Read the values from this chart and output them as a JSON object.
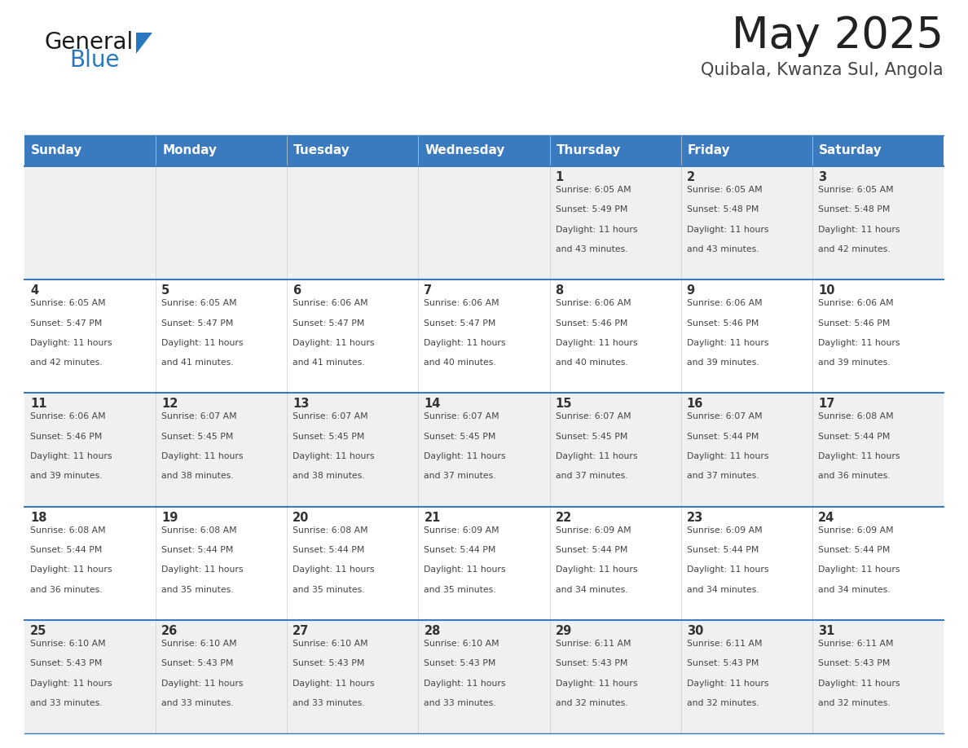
{
  "title": "May 2025",
  "subtitle": "Quibala, Kwanza Sul, Angola",
  "days_of_week": [
    "Sunday",
    "Monday",
    "Tuesday",
    "Wednesday",
    "Thursday",
    "Friday",
    "Saturday"
  ],
  "header_bg": "#3a7abf",
  "header_text": "#ffffff",
  "row_bg_odd": "#f0f0f0",
  "row_bg_even": "#ffffff",
  "cell_text": "#444444",
  "day_num_color": "#333333",
  "divider_color": "#3a7abf",
  "title_color": "#222222",
  "subtitle_color": "#444444",
  "logo_general_color": "#1a1a1a",
  "logo_blue_color": "#2878bf",
  "calendar_data": [
    {
      "day": 1,
      "col": 4,
      "row": 0,
      "sunrise": "6:05 AM",
      "sunset": "5:49 PM",
      "daylight_hours": 11,
      "daylight_minutes": 43
    },
    {
      "day": 2,
      "col": 5,
      "row": 0,
      "sunrise": "6:05 AM",
      "sunset": "5:48 PM",
      "daylight_hours": 11,
      "daylight_minutes": 43
    },
    {
      "day": 3,
      "col": 6,
      "row": 0,
      "sunrise": "6:05 AM",
      "sunset": "5:48 PM",
      "daylight_hours": 11,
      "daylight_minutes": 42
    },
    {
      "day": 4,
      "col": 0,
      "row": 1,
      "sunrise": "6:05 AM",
      "sunset": "5:47 PM",
      "daylight_hours": 11,
      "daylight_minutes": 42
    },
    {
      "day": 5,
      "col": 1,
      "row": 1,
      "sunrise": "6:05 AM",
      "sunset": "5:47 PM",
      "daylight_hours": 11,
      "daylight_minutes": 41
    },
    {
      "day": 6,
      "col": 2,
      "row": 1,
      "sunrise": "6:06 AM",
      "sunset": "5:47 PM",
      "daylight_hours": 11,
      "daylight_minutes": 41
    },
    {
      "day": 7,
      "col": 3,
      "row": 1,
      "sunrise": "6:06 AM",
      "sunset": "5:47 PM",
      "daylight_hours": 11,
      "daylight_minutes": 40
    },
    {
      "day": 8,
      "col": 4,
      "row": 1,
      "sunrise": "6:06 AM",
      "sunset": "5:46 PM",
      "daylight_hours": 11,
      "daylight_minutes": 40
    },
    {
      "day": 9,
      "col": 5,
      "row": 1,
      "sunrise": "6:06 AM",
      "sunset": "5:46 PM",
      "daylight_hours": 11,
      "daylight_minutes": 39
    },
    {
      "day": 10,
      "col": 6,
      "row": 1,
      "sunrise": "6:06 AM",
      "sunset": "5:46 PM",
      "daylight_hours": 11,
      "daylight_minutes": 39
    },
    {
      "day": 11,
      "col": 0,
      "row": 2,
      "sunrise": "6:06 AM",
      "sunset": "5:46 PM",
      "daylight_hours": 11,
      "daylight_minutes": 39
    },
    {
      "day": 12,
      "col": 1,
      "row": 2,
      "sunrise": "6:07 AM",
      "sunset": "5:45 PM",
      "daylight_hours": 11,
      "daylight_minutes": 38
    },
    {
      "day": 13,
      "col": 2,
      "row": 2,
      "sunrise": "6:07 AM",
      "sunset": "5:45 PM",
      "daylight_hours": 11,
      "daylight_minutes": 38
    },
    {
      "day": 14,
      "col": 3,
      "row": 2,
      "sunrise": "6:07 AM",
      "sunset": "5:45 PM",
      "daylight_hours": 11,
      "daylight_minutes": 37
    },
    {
      "day": 15,
      "col": 4,
      "row": 2,
      "sunrise": "6:07 AM",
      "sunset": "5:45 PM",
      "daylight_hours": 11,
      "daylight_minutes": 37
    },
    {
      "day": 16,
      "col": 5,
      "row": 2,
      "sunrise": "6:07 AM",
      "sunset": "5:44 PM",
      "daylight_hours": 11,
      "daylight_minutes": 37
    },
    {
      "day": 17,
      "col": 6,
      "row": 2,
      "sunrise": "6:08 AM",
      "sunset": "5:44 PM",
      "daylight_hours": 11,
      "daylight_minutes": 36
    },
    {
      "day": 18,
      "col": 0,
      "row": 3,
      "sunrise": "6:08 AM",
      "sunset": "5:44 PM",
      "daylight_hours": 11,
      "daylight_minutes": 36
    },
    {
      "day": 19,
      "col": 1,
      "row": 3,
      "sunrise": "6:08 AM",
      "sunset": "5:44 PM",
      "daylight_hours": 11,
      "daylight_minutes": 35
    },
    {
      "day": 20,
      "col": 2,
      "row": 3,
      "sunrise": "6:08 AM",
      "sunset": "5:44 PM",
      "daylight_hours": 11,
      "daylight_minutes": 35
    },
    {
      "day": 21,
      "col": 3,
      "row": 3,
      "sunrise": "6:09 AM",
      "sunset": "5:44 PM",
      "daylight_hours": 11,
      "daylight_minutes": 35
    },
    {
      "day": 22,
      "col": 4,
      "row": 3,
      "sunrise": "6:09 AM",
      "sunset": "5:44 PM",
      "daylight_hours": 11,
      "daylight_minutes": 34
    },
    {
      "day": 23,
      "col": 5,
      "row": 3,
      "sunrise": "6:09 AM",
      "sunset": "5:44 PM",
      "daylight_hours": 11,
      "daylight_minutes": 34
    },
    {
      "day": 24,
      "col": 6,
      "row": 3,
      "sunrise": "6:09 AM",
      "sunset": "5:44 PM",
      "daylight_hours": 11,
      "daylight_minutes": 34
    },
    {
      "day": 25,
      "col": 0,
      "row": 4,
      "sunrise": "6:10 AM",
      "sunset": "5:43 PM",
      "daylight_hours": 11,
      "daylight_minutes": 33
    },
    {
      "day": 26,
      "col": 1,
      "row": 4,
      "sunrise": "6:10 AM",
      "sunset": "5:43 PM",
      "daylight_hours": 11,
      "daylight_minutes": 33
    },
    {
      "day": 27,
      "col": 2,
      "row": 4,
      "sunrise": "6:10 AM",
      "sunset": "5:43 PM",
      "daylight_hours": 11,
      "daylight_minutes": 33
    },
    {
      "day": 28,
      "col": 3,
      "row": 4,
      "sunrise": "6:10 AM",
      "sunset": "5:43 PM",
      "daylight_hours": 11,
      "daylight_minutes": 33
    },
    {
      "day": 29,
      "col": 4,
      "row": 4,
      "sunrise": "6:11 AM",
      "sunset": "5:43 PM",
      "daylight_hours": 11,
      "daylight_minutes": 32
    },
    {
      "day": 30,
      "col": 5,
      "row": 4,
      "sunrise": "6:11 AM",
      "sunset": "5:43 PM",
      "daylight_hours": 11,
      "daylight_minutes": 32
    },
    {
      "day": 31,
      "col": 6,
      "row": 4,
      "sunrise": "6:11 AM",
      "sunset": "5:43 PM",
      "daylight_hours": 11,
      "daylight_minutes": 32
    }
  ]
}
